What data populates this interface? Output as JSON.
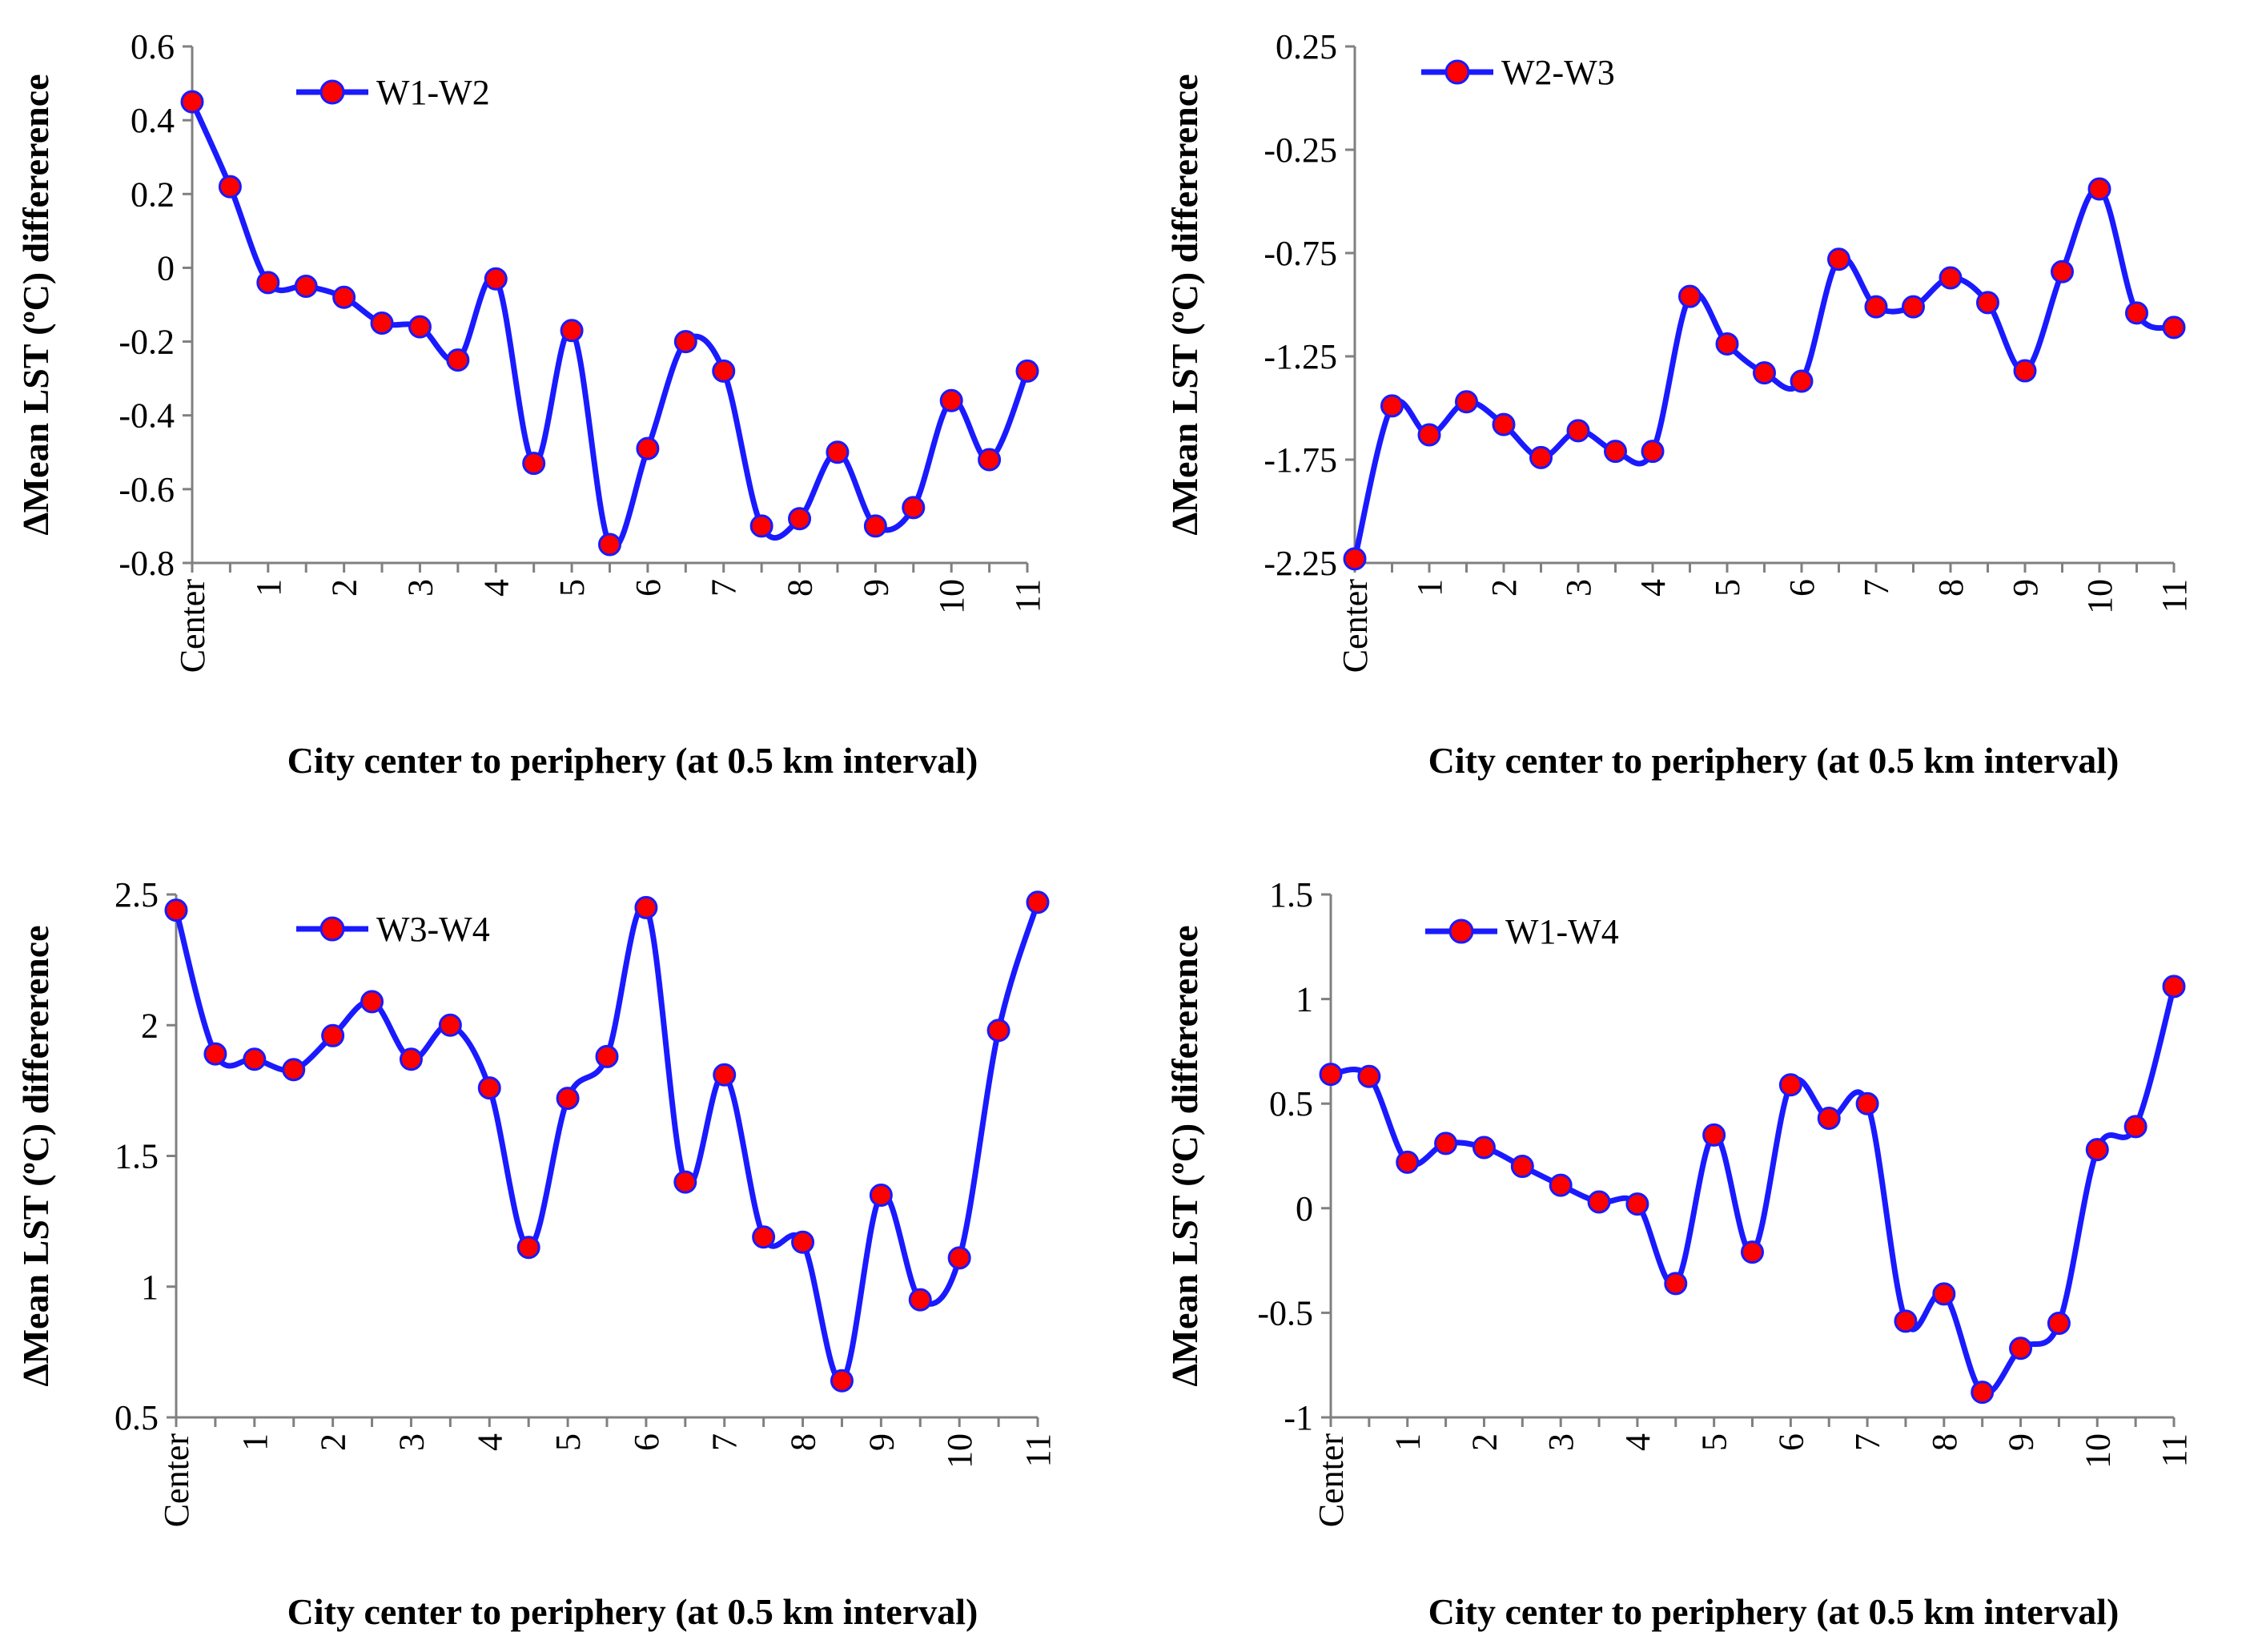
{
  "colors": {
    "line": "#1a1aff",
    "marker": "#ff0000",
    "axis": "#808080"
  },
  "chart_data": [
    {
      "type": "line",
      "series_name": "W1-W2",
      "categories": [
        "Center",
        "",
        "1",
        "",
        "2",
        "",
        "3",
        "",
        "4",
        "",
        "5",
        "",
        "6",
        "",
        "7",
        "",
        "8",
        "",
        "9",
        "",
        "10",
        "",
        "11"
      ],
      "x": [
        0,
        0.5,
        1,
        1.5,
        2,
        2.5,
        3,
        3.5,
        4,
        4.5,
        5,
        5.5,
        6,
        6.5,
        7,
        7.5,
        8,
        8.5,
        9,
        9.5,
        10,
        10.5,
        11
      ],
      "values": [
        0.45,
        0.22,
        -0.04,
        -0.05,
        -0.08,
        -0.15,
        -0.16,
        -0.25,
        -0.03,
        -0.53,
        -0.17,
        -0.75,
        -0.49,
        -0.2,
        -0.28,
        -0.7,
        -0.68,
        -0.5,
        -0.7,
        -0.65,
        -0.36,
        -0.52,
        -0.28
      ],
      "ylim": [
        -0.8,
        0.6
      ],
      "yticks": [
        -0.8,
        -0.6,
        -0.4,
        -0.2,
        0,
        0.2,
        0.4,
        0.6
      ],
      "ytick_labels": [
        "-0.8",
        "-0.6",
        "-0.4",
        "-0.2",
        "0",
        "0.2",
        "0.4",
        "0.6"
      ],
      "ylabel": "∆Mean LST (ºC) differerence",
      "xlabel": "City center to periphery (at 0.5 km interval)"
    },
    {
      "type": "line",
      "series_name": "W2-W3",
      "categories": [
        "Center",
        "",
        "1",
        "",
        "2",
        "",
        "3",
        "",
        "4",
        "",
        "5",
        "",
        "6",
        "",
        "7",
        "",
        "8",
        "",
        "9",
        "",
        "10",
        "",
        "11"
      ],
      "x": [
        0,
        0.5,
        1,
        1.5,
        2,
        2.5,
        3,
        3.5,
        4,
        4.5,
        5,
        5.5,
        6,
        6.5,
        7,
        7.5,
        8,
        8.5,
        9,
        9.5,
        10,
        10.5,
        11
      ],
      "values": [
        -2.23,
        -1.49,
        -1.63,
        -1.47,
        -1.58,
        -1.74,
        -1.61,
        -1.71,
        -1.71,
        -0.96,
        -1.19,
        -1.33,
        -1.37,
        -0.78,
        -1.01,
        -1.01,
        -0.87,
        -0.99,
        -1.32,
        -0.84,
        -0.44,
        -1.04,
        -1.11
      ],
      "ylim": [
        -2.25,
        0.25
      ],
      "yticks": [
        -2.25,
        -1.75,
        -1.25,
        -0.75,
        -0.25,
        0.25
      ],
      "ytick_labels": [
        "-2.25",
        "-1.75",
        "-1.25",
        "-0.75",
        "-0.25",
        "0.25"
      ],
      "ylabel": "∆Mean LST (ºC) differerence",
      "xlabel": "City center to periphery (at 0.5 km interval)"
    },
    {
      "type": "line",
      "series_name": "W3-W4",
      "categories": [
        "Center",
        "",
        "1",
        "",
        "2",
        "",
        "3",
        "",
        "4",
        "",
        "5",
        "",
        "6",
        "",
        "7",
        "",
        "8",
        "",
        "9",
        "",
        "10",
        "",
        "11"
      ],
      "x": [
        0,
        0.5,
        1,
        1.5,
        2,
        2.5,
        3,
        3.5,
        4,
        4.5,
        5,
        5.5,
        6,
        6.5,
        7,
        7.5,
        8,
        8.5,
        9,
        9.5,
        10,
        10.5,
        11
      ],
      "values": [
        2.44,
        1.89,
        1.87,
        1.83,
        1.96,
        2.09,
        1.87,
        2.0,
        1.76,
        1.15,
        1.72,
        1.88,
        2.45,
        1.4,
        1.81,
        1.19,
        1.17,
        0.64,
        1.35,
        0.95,
        1.11,
        1.98,
        2.47
      ],
      "ylim": [
        0.5,
        2.5
      ],
      "yticks": [
        0.5,
        1,
        1.5,
        2,
        2.5
      ],
      "ytick_labels": [
        "0.5",
        "1",
        "1.5",
        "2",
        "2.5"
      ],
      "ylabel": "∆Mean LST (ºC) differerence",
      "xlabel": "City center to periphery (at 0.5 km interval)"
    },
    {
      "type": "line",
      "series_name": "W1-W4",
      "categories": [
        "Center",
        "",
        "1",
        "",
        "2",
        "",
        "3",
        "",
        "4",
        "",
        "5",
        "",
        "6",
        "",
        "7",
        "",
        "8",
        "",
        "9",
        "",
        "10",
        "",
        "11"
      ],
      "x": [
        0,
        0.5,
        1,
        1.5,
        2,
        2.5,
        3,
        3.5,
        4,
        4.5,
        5,
        5.5,
        6,
        6.5,
        7,
        7.5,
        8,
        8.5,
        9,
        9.5,
        10,
        10.5,
        11
      ],
      "values": [
        0.64,
        0.63,
        0.22,
        0.31,
        0.29,
        0.2,
        0.11,
        0.03,
        0.02,
        -0.36,
        0.35,
        -0.21,
        0.59,
        0.43,
        0.5,
        -0.54,
        -0.41,
        -0.88,
        -0.67,
        -0.55,
        0.28,
        0.39,
        1.06
      ],
      "ylim": [
        -1,
        1.5
      ],
      "yticks": [
        -1,
        -0.5,
        0,
        0.5,
        1,
        1.5
      ],
      "ytick_labels": [
        "-1",
        "-0.5",
        "0",
        "0.5",
        "1",
        "1.5"
      ],
      "ylabel": "∆Mean LST (ºC) differerence",
      "xlabel": "City center to periphery (at 0.5 km interval)"
    }
  ]
}
